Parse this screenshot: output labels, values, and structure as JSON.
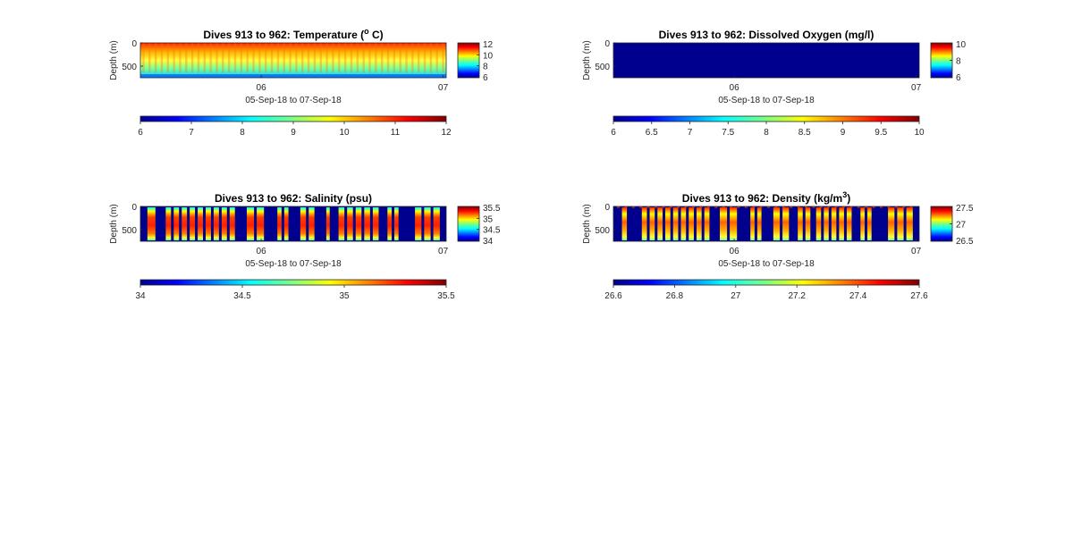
{
  "figure": {
    "panels": [
      {
        "id": "temperature",
        "title_prefix": "Dives 913 to 962: Temperature (",
        "title_sup": "o",
        "title_suffix": " C)",
        "ylabel": "Depth (m)",
        "xlabel": "05-Sep-18 to 07-Sep-18",
        "yticks": [
          "0",
          "500"
        ],
        "xticks": [
          "06",
          "07"
        ],
        "cbar_ticks": [
          "12",
          "10",
          "8",
          "6"
        ],
        "hbar_ticks": [
          "6",
          "7",
          "8",
          "9",
          "10",
          "11",
          "12"
        ],
        "pattern": "temperature"
      },
      {
        "id": "oxygen",
        "title_prefix": "Dives 913 to 962: Dissolved Oxygen (mg/l)",
        "title_sup": "",
        "title_suffix": "",
        "ylabel": "Depth (m)",
        "xlabel": "05-Sep-18 to 07-Sep-18",
        "yticks": [
          "0",
          "500"
        ],
        "xticks": [
          "06",
          "07"
        ],
        "cbar_ticks": [
          "10",
          "8",
          "6"
        ],
        "hbar_ticks": [
          "6",
          "6.5",
          "7",
          "7.5",
          "8",
          "8.5",
          "9",
          "9.5",
          "10"
        ],
        "pattern": "flat"
      },
      {
        "id": "salinity",
        "title_prefix": "Dives 913 to 962: Salinity (psu)",
        "title_sup": "",
        "title_suffix": "",
        "ylabel": "Depth (m)",
        "xlabel": "05-Sep-18 to 07-Sep-18",
        "yticks": [
          "0",
          "500"
        ],
        "xticks": [
          "06",
          "07"
        ],
        "cbar_ticks": [
          "35.5",
          "35",
          "34.5",
          "34"
        ],
        "hbar_ticks": [
          "34",
          "34.5",
          "35",
          "35.5"
        ],
        "pattern": "profiles"
      },
      {
        "id": "density",
        "title_prefix": "Dives 913 to 962: Density (kg/m",
        "title_sup": "3",
        "title_suffix": ")",
        "ylabel": "Depth (m)",
        "xlabel": "05-Sep-18 to 07-Sep-18",
        "yticks": [
          "0",
          "500"
        ],
        "xticks": [
          "06",
          "07"
        ],
        "cbar_ticks": [
          "27.5",
          "27",
          "26.5"
        ],
        "hbar_ticks": [
          "26.6",
          "26.8",
          "27",
          "27.2",
          "27.4",
          "27.6"
        ],
        "pattern": "profiles"
      }
    ]
  },
  "chart_data": [
    {
      "type": "heatmap",
      "title": "Dives 913 to 962: Temperature (o C)",
      "xlabel": "05-Sep-18 to 07-Sep-18",
      "ylabel": "Depth (m)",
      "y_reversed": true,
      "ylim": [
        0,
        750
      ],
      "colormap": "jet",
      "clim": [
        6,
        12
      ],
      "cbar_range": [
        6,
        12
      ],
      "description": "Warm (~11-12 C) near surface, cooling to ~7-8 C at depth; repeating dive profiles"
    },
    {
      "type": "heatmap",
      "title": "Dives 913 to 962: Dissolved Oxygen (mg/l)",
      "xlabel": "05-Sep-18 to 07-Sep-18",
      "ylabel": "Depth (m)",
      "y_reversed": true,
      "ylim": [
        0,
        750
      ],
      "colormap": "jet",
      "clim": [
        6,
        10
      ],
      "cbar_range": [
        6,
        10
      ],
      "description": "Uniform at minimum of color scale (no data)"
    },
    {
      "type": "heatmap",
      "title": "Dives 913 to 962: Salinity (psu)",
      "xlabel": "05-Sep-18 to 07-Sep-18",
      "ylabel": "Depth (m)",
      "y_reversed": true,
      "ylim": [
        0,
        750
      ],
      "colormap": "jet",
      "clim": [
        34,
        35.5
      ],
      "cbar_range": [
        34,
        35.5
      ],
      "description": "Vertical dive profiles ~35-35.5 psu with gaps"
    },
    {
      "type": "heatmap",
      "title": "Dives 913 to 962: Density (kg/m3)",
      "xlabel": "05-Sep-18 to 07-Sep-18",
      "ylabel": "Depth (m)",
      "y_reversed": true,
      "ylim": [
        0,
        750
      ],
      "colormap": "jet",
      "clim": [
        26.5,
        27.7
      ],
      "cbar_range": [
        26.5,
        27.6
      ],
      "description": "Vertical dive profiles ~27.2-27.6 kg/m3 with gaps"
    }
  ]
}
